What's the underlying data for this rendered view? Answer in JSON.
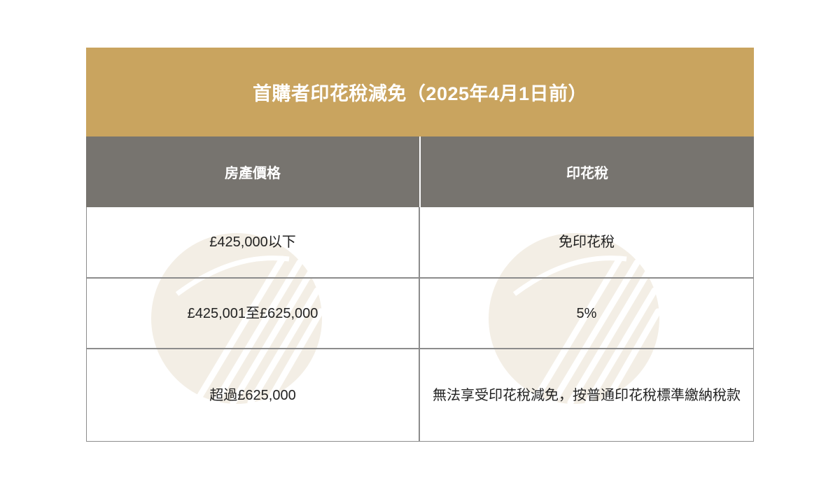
{
  "colors": {
    "title_bg": "#c9a45f",
    "header_bg": "#77746f",
    "border": "#8c8c8c",
    "watermark": "#efe8dc"
  },
  "table": {
    "title": "首購者印花稅減免（2025年4月1日前）",
    "headers": [
      "房產價格",
      "印花稅"
    ],
    "rows": [
      {
        "price": "£425,000以下",
        "duty": "免印花稅"
      },
      {
        "price": "£425,001至£625,000",
        "duty": "5%"
      },
      {
        "price": "超過£625,000",
        "duty": "無法享受印花稅減免，按普通印花稅標準繳納稅款"
      }
    ]
  }
}
